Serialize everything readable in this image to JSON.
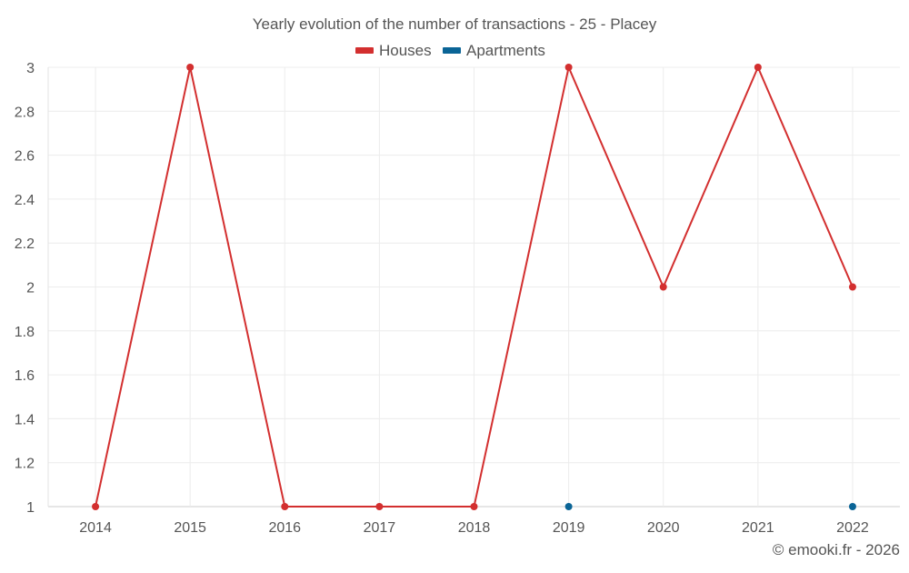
{
  "chart_data": {
    "type": "line",
    "title": "Yearly evolution of the number of transactions - 25 - Placey",
    "xlabel": "",
    "ylabel": "",
    "categories": [
      "2014",
      "2015",
      "2016",
      "2017",
      "2018",
      "2019",
      "2020",
      "2021",
      "2022"
    ],
    "ylim": [
      1,
      3
    ],
    "yticks": [
      "1",
      "1.2",
      "1.4",
      "1.6",
      "1.8",
      "2",
      "2.2",
      "2.4",
      "2.6",
      "2.8",
      "3"
    ],
    "grid": true,
    "legend_position": "top-center",
    "series": [
      {
        "name": "Houses",
        "color": "#d32f2f",
        "values": [
          1,
          3,
          1,
          1,
          1,
          3,
          2,
          3,
          2
        ]
      },
      {
        "name": "Apartments",
        "color": "#0a6496",
        "values": [
          null,
          null,
          null,
          null,
          null,
          1,
          null,
          null,
          1
        ]
      }
    ]
  },
  "credit": "© emooki.fr - 2026"
}
